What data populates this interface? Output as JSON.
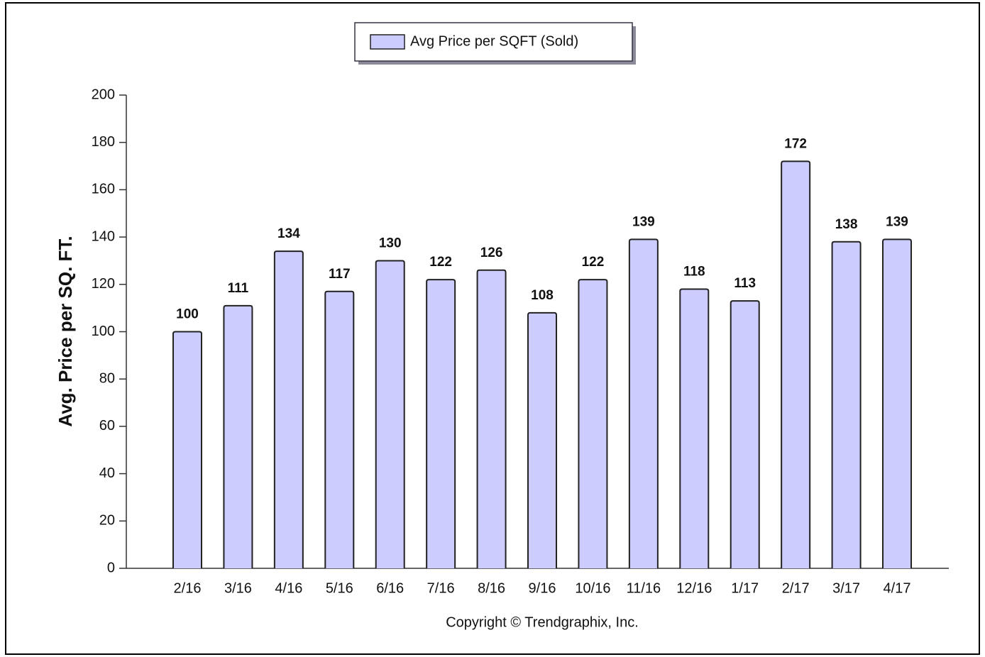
{
  "chart_data": {
    "type": "bar",
    "y_label": "Avg. Price per SQ. FT.",
    "footer": "Copyright © Trendgraphix, Inc.",
    "categories": [
      "2/16",
      "3/16",
      "4/16",
      "5/16",
      "6/16",
      "7/16",
      "8/16",
      "9/16",
      "10/16",
      "11/16",
      "12/16",
      "1/17",
      "2/17",
      "3/17",
      "4/17"
    ],
    "series": [
      {
        "name": "Avg Price per SQFT (Sold)",
        "color": "#ccccff",
        "values": [
          100,
          111,
          134,
          117,
          130,
          122,
          126,
          108,
          122,
          139,
          118,
          113,
          172,
          138,
          139
        ]
      }
    ],
    "ylim": [
      0,
      200
    ],
    "yticks": [
      0,
      20,
      40,
      60,
      80,
      100,
      120,
      140,
      160,
      180,
      200
    ],
    "data_labels": true
  }
}
